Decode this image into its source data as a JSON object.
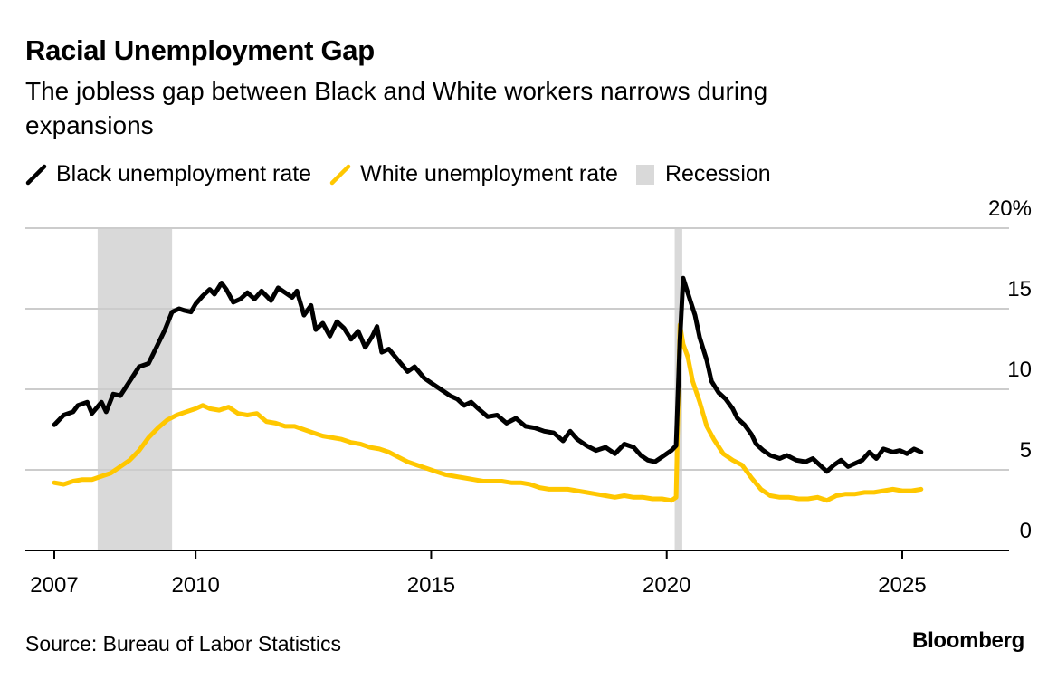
{
  "header": {
    "title": "Racial Unemployment Gap",
    "subtitle": "The jobless gap between Black and White workers narrows during expansions"
  },
  "legend": {
    "black_label": "Black unemployment rate",
    "white_label": "White unemployment rate",
    "recession_label": "Recession"
  },
  "footer": {
    "source": "Source: Bureau of Labor Statistics",
    "brand": "Bloomberg"
  },
  "colors": {
    "black_series": "#000000",
    "white_series": "#FFC700",
    "recession": "#D9D9D9",
    "grid": "#CCCCCC"
  },
  "chart_data": {
    "type": "line",
    "x_unit": "year",
    "xlim": [
      2006.8,
      2026.7
    ],
    "ylim": [
      0,
      20
    ],
    "x_ticks": [
      {
        "value": 2007,
        "label": "2007"
      },
      {
        "value": 2010,
        "label": "2010"
      },
      {
        "value": 2015,
        "label": "2015"
      },
      {
        "value": 2020,
        "label": "2020"
      },
      {
        "value": 2025,
        "label": "2025"
      }
    ],
    "y_ticks": [
      {
        "value": 20,
        "label": "20%"
      },
      {
        "value": 15,
        "label": "15"
      },
      {
        "value": 10,
        "label": "10"
      },
      {
        "value": 5,
        "label": "5"
      },
      {
        "value": 0,
        "label": "0"
      }
    ],
    "grid": true,
    "recessions": [
      {
        "start": 2007.92,
        "end": 2009.5
      },
      {
        "start": 2020.17,
        "end": 2020.33
      }
    ],
    "series": [
      {
        "name": "Black unemployment rate",
        "color": "#000000",
        "points": [
          [
            2007.0,
            7.8
          ],
          [
            2007.2,
            8.4
          ],
          [
            2007.4,
            8.6
          ],
          [
            2007.5,
            9.0
          ],
          [
            2007.7,
            9.2
          ],
          [
            2007.8,
            8.5
          ],
          [
            2008.0,
            9.2
          ],
          [
            2008.1,
            8.6
          ],
          [
            2008.25,
            9.7
          ],
          [
            2008.4,
            9.6
          ],
          [
            2008.6,
            10.5
          ],
          [
            2008.8,
            11.4
          ],
          [
            2009.0,
            11.6
          ],
          [
            2009.2,
            12.8
          ],
          [
            2009.35,
            13.7
          ],
          [
            2009.5,
            14.8
          ],
          [
            2009.65,
            15.0
          ],
          [
            2009.75,
            14.9
          ],
          [
            2009.9,
            14.8
          ],
          [
            2010.0,
            15.3
          ],
          [
            2010.15,
            15.8
          ],
          [
            2010.3,
            16.2
          ],
          [
            2010.4,
            15.9
          ],
          [
            2010.55,
            16.6
          ],
          [
            2010.65,
            16.2
          ],
          [
            2010.8,
            15.4
          ],
          [
            2010.95,
            15.6
          ],
          [
            2011.1,
            16.0
          ],
          [
            2011.25,
            15.6
          ],
          [
            2011.4,
            16.1
          ],
          [
            2011.6,
            15.5
          ],
          [
            2011.75,
            16.3
          ],
          [
            2011.9,
            16.0
          ],
          [
            2012.05,
            15.7
          ],
          [
            2012.15,
            16.1
          ],
          [
            2012.3,
            14.6
          ],
          [
            2012.45,
            15.2
          ],
          [
            2012.55,
            13.7
          ],
          [
            2012.7,
            14.1
          ],
          [
            2012.85,
            13.3
          ],
          [
            2013.0,
            14.2
          ],
          [
            2013.15,
            13.8
          ],
          [
            2013.3,
            13.1
          ],
          [
            2013.45,
            13.6
          ],
          [
            2013.6,
            12.6
          ],
          [
            2013.75,
            13.3
          ],
          [
            2013.85,
            13.9
          ],
          [
            2013.95,
            12.3
          ],
          [
            2014.1,
            12.5
          ],
          [
            2014.3,
            11.8
          ],
          [
            2014.5,
            11.1
          ],
          [
            2014.65,
            11.4
          ],
          [
            2014.85,
            10.7
          ],
          [
            2015.0,
            10.4
          ],
          [
            2015.2,
            10.0
          ],
          [
            2015.4,
            9.6
          ],
          [
            2015.55,
            9.4
          ],
          [
            2015.7,
            9.0
          ],
          [
            2015.85,
            9.2
          ],
          [
            2016.0,
            8.8
          ],
          [
            2016.2,
            8.3
          ],
          [
            2016.4,
            8.4
          ],
          [
            2016.6,
            7.9
          ],
          [
            2016.8,
            8.2
          ],
          [
            2017.0,
            7.7
          ],
          [
            2017.2,
            7.6
          ],
          [
            2017.4,
            7.4
          ],
          [
            2017.6,
            7.3
          ],
          [
            2017.8,
            6.8
          ],
          [
            2017.95,
            7.4
          ],
          [
            2018.1,
            6.9
          ],
          [
            2018.3,
            6.5
          ],
          [
            2018.5,
            6.2
          ],
          [
            2018.7,
            6.4
          ],
          [
            2018.9,
            6.0
          ],
          [
            2019.1,
            6.6
          ],
          [
            2019.3,
            6.4
          ],
          [
            2019.45,
            5.9
          ],
          [
            2019.6,
            5.6
          ],
          [
            2019.75,
            5.5
          ],
          [
            2019.9,
            5.8
          ],
          [
            2020.0,
            6.0
          ],
          [
            2020.1,
            6.2
          ],
          [
            2020.2,
            6.5
          ],
          [
            2020.28,
            13.0
          ],
          [
            2020.35,
            16.9
          ],
          [
            2020.5,
            15.5
          ],
          [
            2020.6,
            14.6
          ],
          [
            2020.7,
            13.2
          ],
          [
            2020.85,
            11.8
          ],
          [
            2020.95,
            10.5
          ],
          [
            2021.1,
            9.8
          ],
          [
            2021.25,
            9.4
          ],
          [
            2021.4,
            8.8
          ],
          [
            2021.5,
            8.2
          ],
          [
            2021.65,
            7.8
          ],
          [
            2021.8,
            7.2
          ],
          [
            2021.9,
            6.6
          ],
          [
            2022.05,
            6.2
          ],
          [
            2022.2,
            5.9
          ],
          [
            2022.4,
            5.7
          ],
          [
            2022.55,
            5.9
          ],
          [
            2022.75,
            5.6
          ],
          [
            2022.95,
            5.5
          ],
          [
            2023.1,
            5.7
          ],
          [
            2023.25,
            5.3
          ],
          [
            2023.4,
            4.9
          ],
          [
            2023.55,
            5.3
          ],
          [
            2023.7,
            5.6
          ],
          [
            2023.85,
            5.2
          ],
          [
            2024.0,
            5.4
          ],
          [
            2024.15,
            5.6
          ],
          [
            2024.3,
            6.1
          ],
          [
            2024.45,
            5.7
          ],
          [
            2024.6,
            6.3
          ],
          [
            2024.8,
            6.1
          ],
          [
            2024.95,
            6.2
          ],
          [
            2025.1,
            6.0
          ],
          [
            2025.25,
            6.3
          ],
          [
            2025.4,
            6.1
          ]
        ]
      },
      {
        "name": "White unemployment rate",
        "color": "#FFC700",
        "points": [
          [
            2007.0,
            4.2
          ],
          [
            2007.2,
            4.1
          ],
          [
            2007.4,
            4.3
          ],
          [
            2007.6,
            4.4
          ],
          [
            2007.8,
            4.4
          ],
          [
            2008.0,
            4.6
          ],
          [
            2008.2,
            4.8
          ],
          [
            2008.4,
            5.2
          ],
          [
            2008.6,
            5.6
          ],
          [
            2008.8,
            6.2
          ],
          [
            2009.0,
            7.0
          ],
          [
            2009.2,
            7.6
          ],
          [
            2009.4,
            8.1
          ],
          [
            2009.6,
            8.4
          ],
          [
            2009.8,
            8.6
          ],
          [
            2010.0,
            8.8
          ],
          [
            2010.15,
            9.0
          ],
          [
            2010.3,
            8.8
          ],
          [
            2010.5,
            8.7
          ],
          [
            2010.7,
            8.9
          ],
          [
            2010.9,
            8.5
          ],
          [
            2011.1,
            8.4
          ],
          [
            2011.3,
            8.5
          ],
          [
            2011.5,
            8.0
          ],
          [
            2011.7,
            7.9
          ],
          [
            2011.9,
            7.7
          ],
          [
            2012.1,
            7.7
          ],
          [
            2012.3,
            7.5
          ],
          [
            2012.5,
            7.3
          ],
          [
            2012.7,
            7.1
          ],
          [
            2012.9,
            7.0
          ],
          [
            2013.1,
            6.9
          ],
          [
            2013.3,
            6.7
          ],
          [
            2013.5,
            6.6
          ],
          [
            2013.7,
            6.4
          ],
          [
            2013.9,
            6.3
          ],
          [
            2014.1,
            6.1
          ],
          [
            2014.3,
            5.8
          ],
          [
            2014.5,
            5.5
          ],
          [
            2014.7,
            5.3
          ],
          [
            2014.9,
            5.1
          ],
          [
            2015.1,
            4.9
          ],
          [
            2015.3,
            4.7
          ],
          [
            2015.5,
            4.6
          ],
          [
            2015.7,
            4.5
          ],
          [
            2015.9,
            4.4
          ],
          [
            2016.1,
            4.3
          ],
          [
            2016.3,
            4.3
          ],
          [
            2016.5,
            4.3
          ],
          [
            2016.7,
            4.2
          ],
          [
            2016.9,
            4.2
          ],
          [
            2017.1,
            4.1
          ],
          [
            2017.3,
            3.9
          ],
          [
            2017.5,
            3.8
          ],
          [
            2017.7,
            3.8
          ],
          [
            2017.9,
            3.8
          ],
          [
            2018.1,
            3.7
          ],
          [
            2018.3,
            3.6
          ],
          [
            2018.5,
            3.5
          ],
          [
            2018.7,
            3.4
          ],
          [
            2018.9,
            3.3
          ],
          [
            2019.1,
            3.4
          ],
          [
            2019.3,
            3.3
          ],
          [
            2019.5,
            3.3
          ],
          [
            2019.7,
            3.2
          ],
          [
            2019.9,
            3.2
          ],
          [
            2020.1,
            3.1
          ],
          [
            2020.2,
            3.3
          ],
          [
            2020.28,
            14.0
          ],
          [
            2020.35,
            12.8
          ],
          [
            2020.45,
            12.0
          ],
          [
            2020.55,
            10.5
          ],
          [
            2020.7,
            9.2
          ],
          [
            2020.85,
            7.7
          ],
          [
            2021.0,
            6.9
          ],
          [
            2021.2,
            6.0
          ],
          [
            2021.4,
            5.6
          ],
          [
            2021.6,
            5.3
          ],
          [
            2021.8,
            4.5
          ],
          [
            2022.0,
            3.8
          ],
          [
            2022.2,
            3.4
          ],
          [
            2022.4,
            3.3
          ],
          [
            2022.6,
            3.3
          ],
          [
            2022.8,
            3.2
          ],
          [
            2023.0,
            3.2
          ],
          [
            2023.2,
            3.3
          ],
          [
            2023.4,
            3.1
          ],
          [
            2023.6,
            3.4
          ],
          [
            2023.8,
            3.5
          ],
          [
            2024.0,
            3.5
          ],
          [
            2024.2,
            3.6
          ],
          [
            2024.4,
            3.6
          ],
          [
            2024.6,
            3.7
          ],
          [
            2024.8,
            3.8
          ],
          [
            2025.0,
            3.7
          ],
          [
            2025.2,
            3.7
          ],
          [
            2025.4,
            3.8
          ]
        ]
      }
    ]
  }
}
